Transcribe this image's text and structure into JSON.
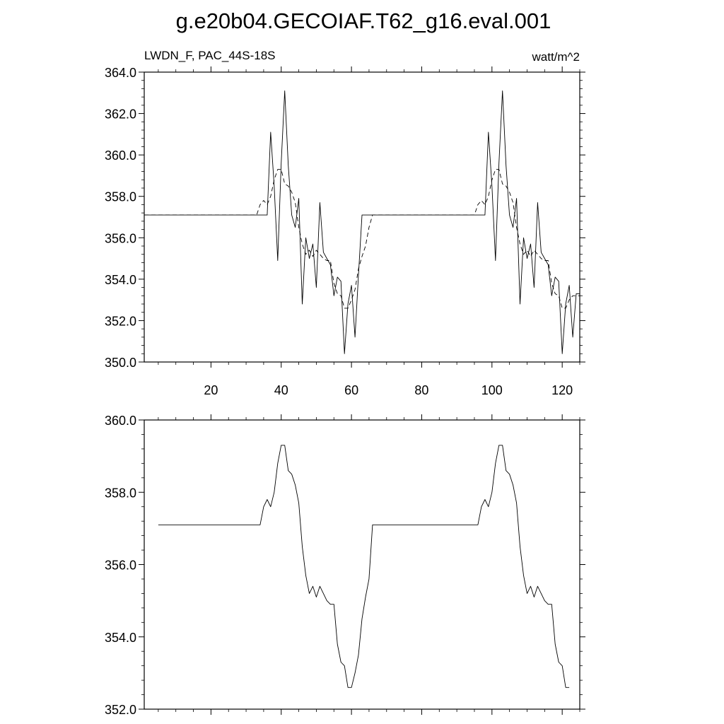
{
  "title": "g.e20b04.GECOIAF.T62_g16.eval.001",
  "panel_label_left": "LWDN_F, PAC_44S-18S",
  "panel_label_right": "watt/m^2",
  "chart_data": [
    {
      "type": "line",
      "panel": "top",
      "xlim": [
        1,
        125
      ],
      "ylim": [
        350,
        364
      ],
      "x_ticks": [
        20,
        40,
        60,
        80,
        100,
        120
      ],
      "y_ticks": [
        "350.0",
        "352.0",
        "354.0",
        "356.0",
        "358.0",
        "360.0",
        "362.0",
        "364.0"
      ],
      "series": [
        {
          "style": "solid",
          "x": [
            1,
            36,
            37,
            38,
            39,
            40,
            41,
            42,
            43,
            44,
            45,
            46,
            47,
            48,
            49,
            50,
            51,
            52,
            53,
            54,
            55,
            56,
            57,
            58,
            59,
            60,
            61,
            62,
            63,
            98,
            99,
            100,
            101,
            102,
            103,
            104,
            105,
            106,
            107,
            108,
            109,
            110,
            111,
            112,
            113,
            114,
            115,
            116,
            117,
            118,
            119,
            120,
            121,
            122,
            123,
            124,
            125
          ],
          "y": [
            357.1,
            357.1,
            361.1,
            358.5,
            354.9,
            359.6,
            363.1,
            359.5,
            357.1,
            356.5,
            357.9,
            352.8,
            356.0,
            355.0,
            355.7,
            353.6,
            357.7,
            355.3,
            355.0,
            354.7,
            353.2,
            354.1,
            353.9,
            350.4,
            352.8,
            353.7,
            351.2,
            354.2,
            357.1,
            357.1,
            361.1,
            358.5,
            354.9,
            359.6,
            363.1,
            359.5,
            357.1,
            356.5,
            357.9,
            352.8,
            356.0,
            355.0,
            355.7,
            353.6,
            357.7,
            355.3,
            355.0,
            354.7,
            353.2,
            354.1,
            353.9,
            350.4,
            352.8,
            353.7,
            351.2,
            353.3,
            353.3
          ]
        },
        {
          "style": "dashed",
          "x": [
            1,
            33,
            34,
            35,
            36,
            37,
            38,
            39,
            40,
            41,
            42,
            43,
            44,
            45,
            46,
            47,
            48,
            49,
            50,
            51,
            52,
            53,
            54,
            55,
            56,
            57,
            58,
            59,
            60,
            61,
            62,
            63,
            64,
            65,
            66,
            95,
            96,
            97,
            98,
            99,
            100,
            101,
            102,
            103,
            104,
            105,
            106,
            107,
            108,
            109,
            110,
            111,
            112,
            113,
            114,
            115,
            116,
            117,
            118,
            119,
            120,
            121,
            122,
            123,
            124,
            125
          ],
          "y": [
            357.1,
            357.1,
            357.6,
            357.8,
            357.6,
            358.0,
            358.8,
            359.3,
            359.3,
            358.6,
            358.5,
            358.2,
            357.7,
            356.5,
            355.7,
            355.2,
            355.4,
            355.1,
            355.4,
            355.2,
            355.0,
            354.9,
            354.9,
            353.8,
            353.3,
            353.2,
            352.6,
            352.6,
            353.0,
            353.5,
            354.5,
            355.1,
            355.6,
            356.5,
            357.1,
            357.1,
            357.6,
            357.8,
            357.6,
            358.0,
            358.8,
            359.3,
            359.3,
            358.6,
            358.5,
            358.2,
            357.7,
            356.5,
            355.7,
            355.2,
            355.4,
            355.1,
            355.4,
            355.2,
            355.0,
            354.9,
            354.9,
            353.8,
            353.3,
            353.2,
            352.6,
            352.6,
            353.0,
            353.2,
            353.2,
            353.2
          ]
        }
      ]
    },
    {
      "type": "line",
      "panel": "bottom",
      "xlim": [
        1,
        125
      ],
      "ylim": [
        352,
        360
      ],
      "x_ticks": [
        20,
        40,
        60,
        80,
        100,
        120
      ],
      "y_ticks": [
        "352.0",
        "354.0",
        "356.0",
        "358.0",
        "360.0"
      ],
      "series": [
        {
          "style": "solid",
          "x": [
            5,
            34,
            35,
            36,
            37,
            38,
            39,
            40,
            41,
            42,
            43,
            44,
            45,
            46,
            47,
            48,
            49,
            50,
            51,
            52,
            53,
            54,
            55,
            56,
            57,
            58,
            59,
            60,
            61,
            62,
            63,
            64,
            65,
            66,
            96,
            97,
            98,
            99,
            100,
            101,
            102,
            103,
            104,
            105,
            106,
            107,
            108,
            109,
            110,
            111,
            112,
            113,
            114,
            115,
            116,
            117,
            118,
            119,
            120,
            121,
            122
          ],
          "y": [
            357.1,
            357.1,
            357.6,
            357.8,
            357.6,
            358.0,
            358.8,
            359.3,
            359.3,
            358.6,
            358.5,
            358.2,
            357.7,
            356.5,
            355.7,
            355.2,
            355.4,
            355.1,
            355.4,
            355.2,
            355.0,
            354.9,
            354.9,
            353.8,
            353.3,
            353.2,
            352.6,
            352.6,
            353.0,
            353.5,
            354.5,
            355.1,
            355.6,
            357.1,
            357.1,
            357.6,
            357.8,
            357.6,
            358.0,
            358.8,
            359.3,
            359.3,
            358.6,
            358.5,
            358.2,
            357.7,
            356.5,
            355.7,
            355.2,
            355.4,
            355.1,
            355.4,
            355.2,
            355.0,
            354.9,
            354.9,
            353.8,
            353.3,
            353.2,
            352.6,
            352.6
          ]
        }
      ]
    }
  ]
}
